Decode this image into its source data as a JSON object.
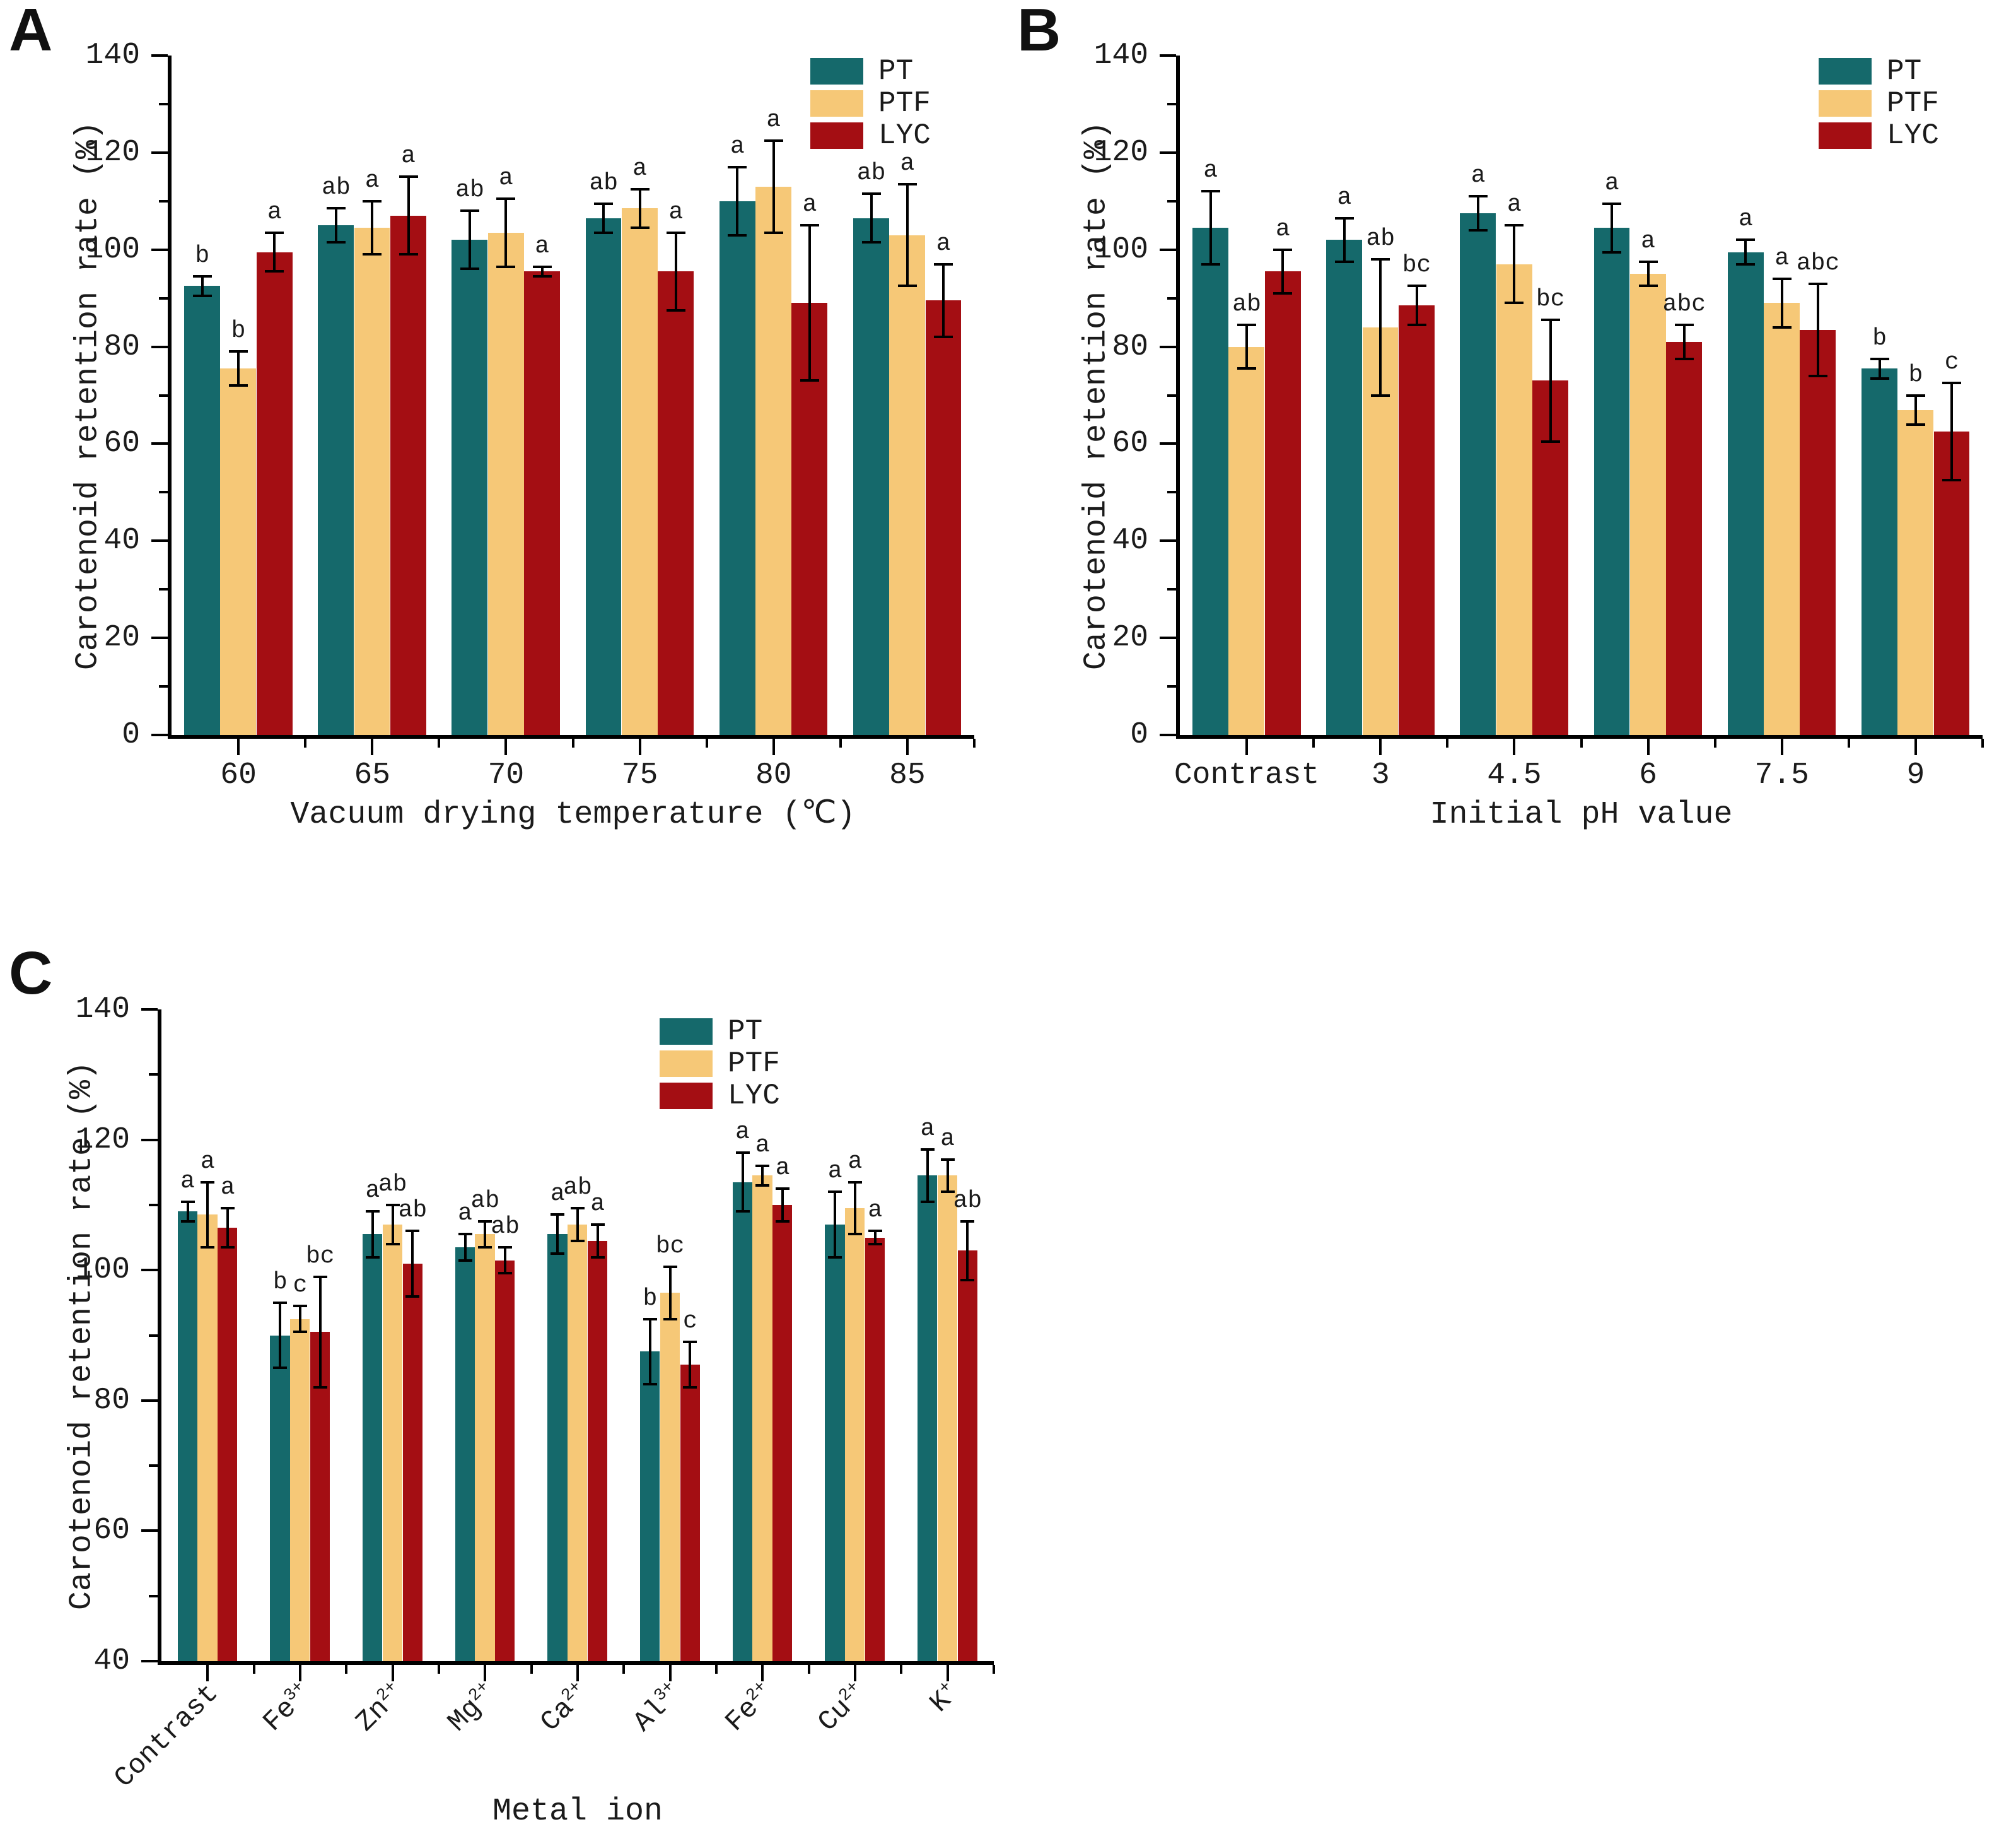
{
  "figure": {
    "background": "#ffffff",
    "series_colors": {
      "PT": "#15696B",
      "PTF": "#F6C877",
      "LYC": "#A40E13"
    },
    "axis_color": "#000000",
    "text_color": "#1b1b1b",
    "legend_labels": [
      "PT",
      "PTF",
      "LYC"
    ]
  },
  "chart_data": [
    {
      "type": "bar",
      "panel": "A",
      "title": "",
      "xlabel": "Vacuum drying temperature (℃)",
      "ylabel": "Carotenoid retention rate (%)",
      "ylim": [
        0,
        140
      ],
      "ytick_step": 20,
      "yminor_step": 10,
      "grid": "off",
      "legend_position": "top-right",
      "categories": [
        "60",
        "65",
        "70",
        "75",
        "80",
        "85"
      ],
      "series": [
        {
          "name": "PT",
          "values": [
            92.5,
            105,
            102,
            106.5,
            110,
            106.5
          ],
          "errors": [
            2,
            3.5,
            6,
            3,
            7,
            5
          ],
          "letters": [
            "b",
            "ab",
            "ab",
            "ab",
            "a",
            "ab"
          ]
        },
        {
          "name": "PTF",
          "values": [
            75.5,
            104.5,
            103.5,
            108.5,
            113,
            103
          ],
          "errors": [
            3.5,
            5.5,
            7,
            4,
            9.5,
            10.5
          ],
          "letters": [
            "b",
            "a",
            "a",
            "a",
            "a",
            "a"
          ]
        },
        {
          "name": "LYC",
          "values": [
            99.5,
            107,
            95.5,
            95.5,
            89,
            89.5
          ],
          "errors": [
            4,
            8,
            1,
            8,
            16,
            7.5
          ],
          "letters": [
            "a",
            "a",
            "a",
            "a",
            "a",
            "a"
          ]
        }
      ]
    },
    {
      "type": "bar",
      "panel": "B",
      "title": "",
      "xlabel": "Initial pH value",
      "ylabel": "Carotenoid retention rate (%)",
      "ylim": [
        0,
        140
      ],
      "ytick_step": 20,
      "yminor_step": 10,
      "grid": "off",
      "legend_position": "top-right",
      "categories": [
        "Contrast",
        "3",
        "4.5",
        "6",
        "7.5",
        "9"
      ],
      "series": [
        {
          "name": "PT",
          "values": [
            104.5,
            102,
            107.5,
            104.5,
            99.5,
            75.5
          ],
          "errors": [
            7.5,
            4.5,
            3.5,
            5,
            2.5,
            2
          ],
          "letters": [
            "a",
            "a",
            "a",
            "a",
            "a",
            "b"
          ]
        },
        {
          "name": "PTF",
          "values": [
            80,
            84,
            97,
            95,
            89,
            67
          ],
          "errors": [
            4.5,
            14,
            8,
            2.5,
            5,
            3
          ],
          "letters": [
            "ab",
            "ab",
            "a",
            "a",
            "a",
            "b"
          ]
        },
        {
          "name": "LYC",
          "values": [
            95.5,
            88.5,
            73,
            81,
            83.5,
            62.5
          ],
          "errors": [
            4.5,
            4,
            12.5,
            3.5,
            9.5,
            10
          ],
          "letters": [
            "a",
            "bc",
            "bc",
            "abc",
            "abc",
            "c"
          ]
        }
      ]
    },
    {
      "type": "bar",
      "panel": "C",
      "title": "",
      "xlabel": "Metal ion",
      "ylabel": "Carotenoid retention rate (%)",
      "ylim": [
        40,
        140
      ],
      "ytick_step": 20,
      "yminor_step": 10,
      "grid": "off",
      "legend_position": "top-right-inset",
      "xtick_rotation": 45,
      "categories": [
        "Contrast",
        "Fe³⁺",
        "Zn²⁺",
        "Mg²⁺",
        "Ca²⁺",
        "Al³⁺",
        "Fe²⁺",
        "Cu²⁺",
        "K⁺"
      ],
      "series": [
        {
          "name": "PT",
          "values": [
            109,
            90,
            105.5,
            103.5,
            105.5,
            87.5,
            113.5,
            107,
            114.5
          ],
          "errors": [
            1.5,
            5,
            3.5,
            2,
            3,
            5,
            4.5,
            5,
            4
          ],
          "letters": [
            "a",
            "b",
            "a",
            "a",
            "a",
            "b",
            "a",
            "a",
            "a"
          ]
        },
        {
          "name": "PTF",
          "values": [
            108.5,
            92.5,
            107,
            105.5,
            107,
            96.5,
            114.5,
            109.5,
            114.5
          ],
          "errors": [
            5,
            2,
            3,
            2,
            2.5,
            4,
            1.5,
            4,
            2.5
          ],
          "letters": [
            "a",
            "c",
            "ab",
            "ab",
            "ab",
            "bc",
            "a",
            "a",
            "a"
          ]
        },
        {
          "name": "LYC",
          "values": [
            106.5,
            90.5,
            101,
            101.5,
            104.5,
            85.5,
            110,
            105,
            103
          ],
          "errors": [
            3,
            8.5,
            5,
            2,
            2.5,
            3.5,
            2.5,
            1,
            4.5
          ],
          "letters": [
            "a",
            "bc",
            "ab",
            "ab",
            "a",
            "c",
            "a",
            "a",
            "ab"
          ]
        }
      ]
    }
  ]
}
